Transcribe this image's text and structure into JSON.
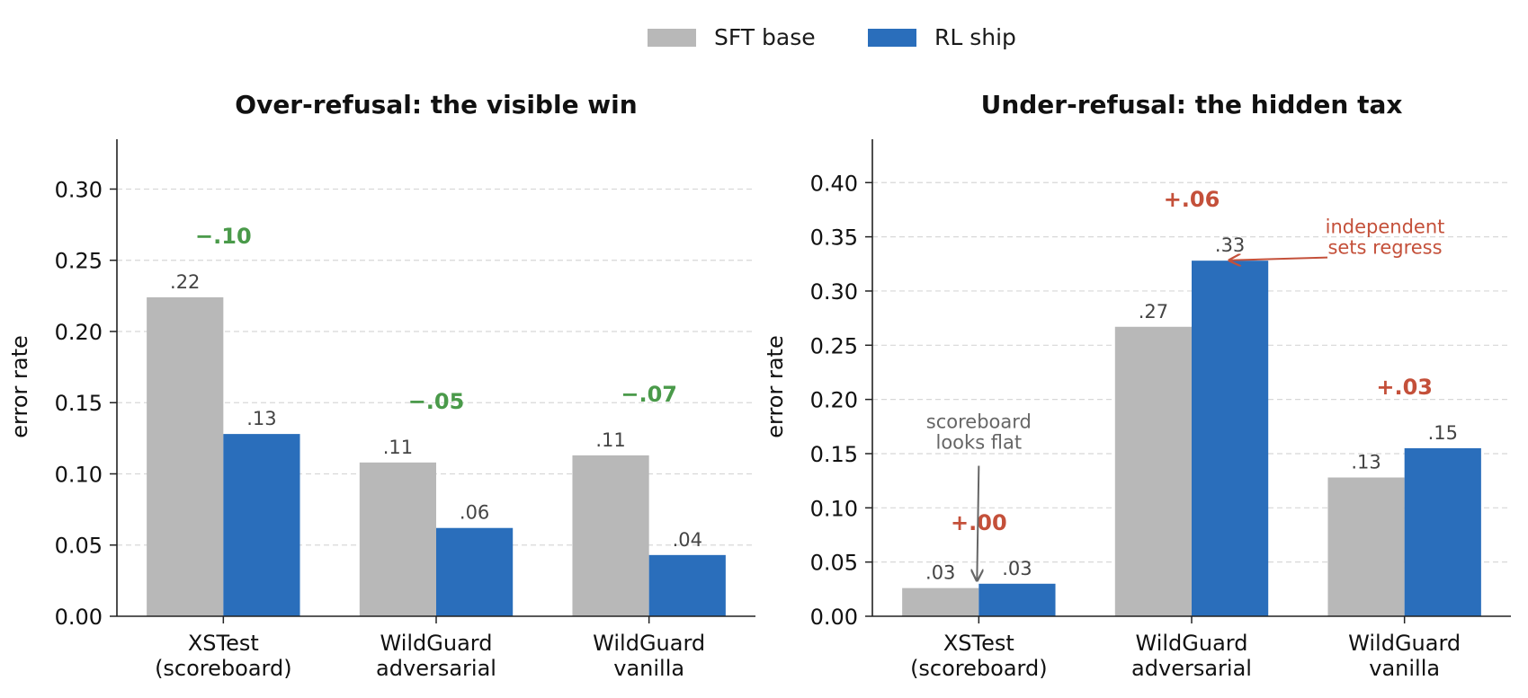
{
  "legend": {
    "items": [
      {
        "label": "SFT base",
        "color": "#b8b8b8"
      },
      {
        "label": "RL ship",
        "color": "#2a6ebb"
      }
    ]
  },
  "colors": {
    "decrease": "#4a9a4a",
    "increase": "#c4503a",
    "note_gray": "#666666",
    "value_label": "#444444",
    "grid": "#d8d8d8"
  },
  "chart_data": [
    {
      "type": "bar",
      "title": "Over-refusal: the visible win",
      "ylabel": "error rate",
      "ylim": [
        0,
        0.335
      ],
      "yticks": [
        "0.00",
        "0.05",
        "0.10",
        "0.15",
        "0.20",
        "0.25",
        "0.30"
      ],
      "grid": true,
      "categories": [
        "XSTest\n(scoreboard)",
        "WildGuard\nadversarial",
        "WildGuard\nvanilla"
      ],
      "series": [
        {
          "name": "SFT base",
          "values": [
            0.224,
            0.108,
            0.113
          ],
          "labels": [
            ".22",
            ".11",
            ".11"
          ]
        },
        {
          "name": "RL ship",
          "values": [
            0.128,
            0.062,
            0.043
          ],
          "labels": [
            ".13",
            ".06",
            ".04"
          ]
        }
      ],
      "deltas": [
        "−.10",
        "−.05",
        "−.07"
      ],
      "delta_kind": "decrease",
      "annotations": []
    },
    {
      "type": "bar",
      "title": "Under-refusal: the hidden tax",
      "ylabel": "error rate",
      "ylim": [
        0,
        0.44
      ],
      "yticks": [
        "0.00",
        "0.05",
        "0.10",
        "0.15",
        "0.20",
        "0.25",
        "0.30",
        "0.35",
        "0.40"
      ],
      "grid": true,
      "categories": [
        "XSTest\n(scoreboard)",
        "WildGuard\nadversarial",
        "WildGuard\nvanilla"
      ],
      "series": [
        {
          "name": "SFT base",
          "values": [
            0.026,
            0.267,
            0.128
          ],
          "labels": [
            ".03",
            ".27",
            ".13"
          ]
        },
        {
          "name": "RL ship",
          "values": [
            0.03,
            0.328,
            0.155
          ],
          "labels": [
            ".03",
            ".33",
            ".15"
          ]
        }
      ],
      "deltas": [
        "+.00",
        "+.06",
        "+.03"
      ],
      "delta_kind": "increase",
      "annotations": [
        {
          "text": "scoreboard\nlooks flat",
          "color_key": "note_gray",
          "category": 0,
          "text_value": 0.157,
          "arrow_to_value": 0.033
        },
        {
          "text": "independent\nsets regress",
          "color_key": "increase",
          "category": 1,
          "text_value": 0.35,
          "arrow_to_value": 0.33
        }
      ]
    }
  ]
}
